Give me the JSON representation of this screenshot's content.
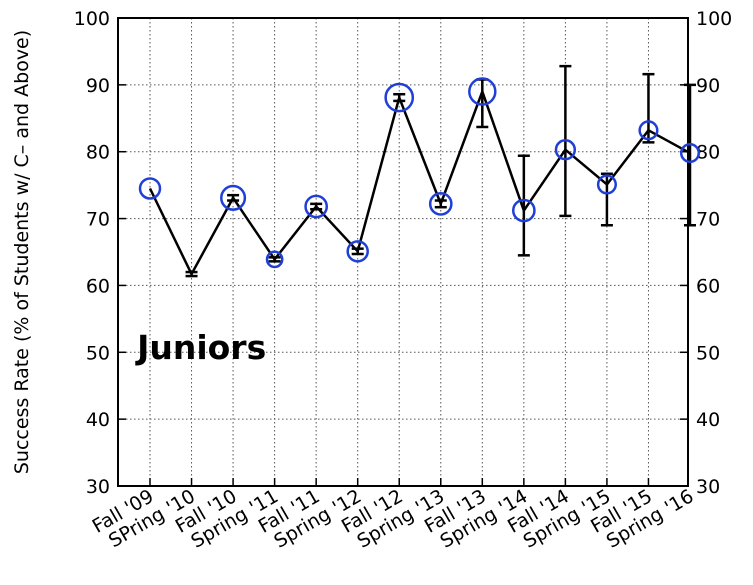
{
  "chart_data": {
    "type": "line",
    "xlabel": "",
    "ylabel": "Success Rate (% of Students w/ C– and Above)",
    "ylim": [
      30,
      100
    ],
    "yticks": [
      30,
      40,
      50,
      60,
      70,
      80,
      90,
      100
    ],
    "grid": true,
    "right_axis_labels": true,
    "categories": [
      "Fall '09",
      "SPring '10",
      "Fall '10",
      "Spring '11",
      "Fall '11",
      "Spring '12",
      "Fall '12",
      "Spring '13",
      "Fall '13",
      "Spring '14",
      "Fall '14",
      "Spring '15",
      "Fall '15",
      "Spring '16"
    ],
    "series": [
      {
        "values": [
          74.5,
          61.7,
          73.1,
          63.9,
          71.8,
          65.1,
          88.1,
          72.2,
          89.0,
          71.2,
          80.3,
          75.1,
          83.2,
          79.8
        ],
        "error_low": [
          0,
          0.3,
          0.4,
          0.3,
          0.4,
          0.4,
          0.5,
          0.5,
          5.3,
          6.7,
          9.9,
          6.1,
          1.8,
          10.8
        ],
        "error_high": [
          0,
          0.3,
          0.4,
          0.3,
          0.4,
          0.4,
          0.5,
          0.5,
          1.8,
          8.2,
          12.5,
          1.6,
          8.4,
          10.2
        ],
        "marker_size": [
          1,
          0,
          1.3,
          0.6,
          1.1,
          1.0,
          1.6,
          1.1,
          1.5,
          1.1,
          0.9,
          0.8,
          0.8,
          0.8
        ]
      }
    ],
    "colors": {
      "line": "#000000",
      "marker": "#1f3fd6",
      "grid": "#555555"
    },
    "annotations": [
      {
        "text": "Juniors",
        "x": "Fall '10",
        "y": 49
      }
    ]
  }
}
